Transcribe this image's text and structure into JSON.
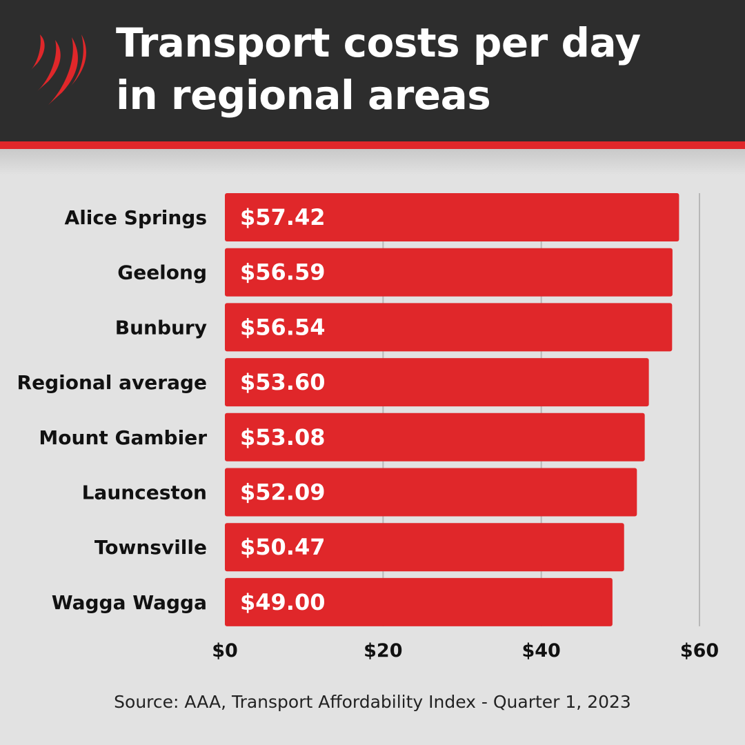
{
  "title_lines": [
    "Transport costs per day",
    "in regional areas"
  ],
  "source": "Source: AAA, Transport Affordability Index - Quarter 1, 2023",
  "colors": {
    "bar": "#e0272a",
    "header_bg": "#2d2d2d",
    "background": "#e2e2e2",
    "accent": "#e0272a"
  },
  "logo_icon": "sbs-logo-icon",
  "chart_data": {
    "type": "bar",
    "orientation": "horizontal",
    "categories": [
      "Alice Springs",
      "Geelong",
      "Bunbury",
      "Regional average",
      "Mount Gambier",
      "Launceston",
      "Townsville",
      "Wagga Wagga"
    ],
    "values": [
      57.42,
      56.59,
      56.54,
      53.6,
      53.08,
      52.09,
      50.47,
      49.0
    ],
    "value_labels": [
      "$57.42",
      "$56.59",
      "$56.54",
      "$53.60",
      "$53.08",
      "$52.09",
      "$50.47",
      "$49.00"
    ],
    "xlim": [
      0,
      60
    ],
    "x_ticks": [
      0,
      20,
      40,
      60
    ],
    "x_tick_labels": [
      "$0",
      "$20",
      "$40",
      "$60"
    ],
    "grid": true,
    "legend": "none"
  }
}
